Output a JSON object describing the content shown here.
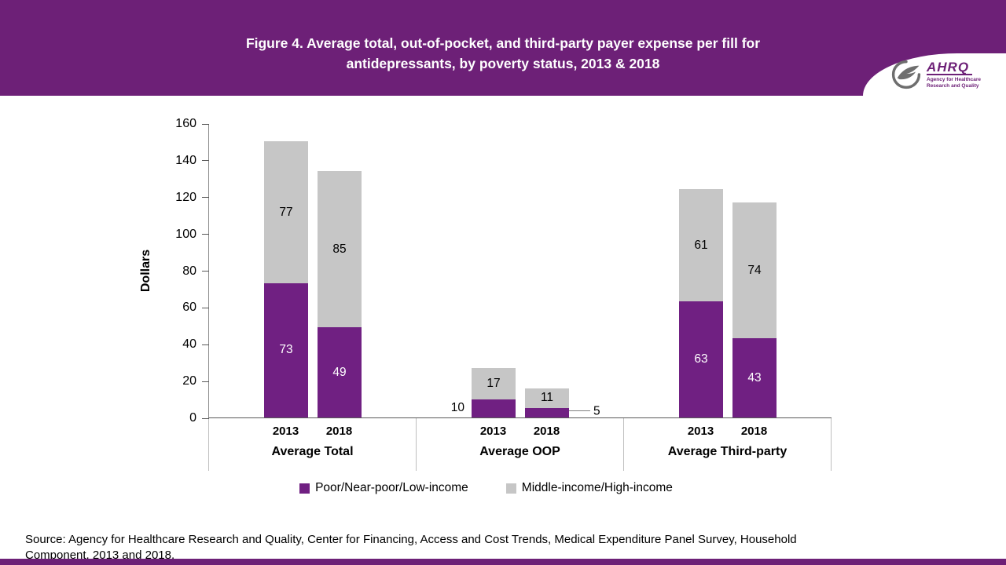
{
  "colors": {
    "header_purple": "#6d2077",
    "footer_purple": "#6d2077",
    "bar_purple": "#702082",
    "bar_gray": "#c6c6c6"
  },
  "header": {
    "title_line1": "Figure 4. Average total, out-of-pocket, and third-party payer expense per fill for",
    "title_line2": "antidepressants, by poverty status, 2013 & 2018"
  },
  "logo": {
    "wordmark": "AHRQ",
    "tagline_line1": "Agency for Healthcare",
    "tagline_line2": "Research and Quality",
    "hhs_icon": "hhs-eagle-icon"
  },
  "chart_data": {
    "type": "bar",
    "stacked": true,
    "title": "Figure 4. Average total, out-of-pocket, and third-party payer expense per fill for antidepressants, by poverty status, 2013 & 2018",
    "ylabel": "Dollars",
    "ylim": [
      0,
      160
    ],
    "yticks": [
      0,
      20,
      40,
      60,
      80,
      100,
      120,
      140,
      160
    ],
    "grid": false,
    "legend_position": "bottom",
    "group_labels": [
      "Average Total",
      "Average OOP",
      "Average Third-party"
    ],
    "bar_categories": [
      "2013",
      "2018"
    ],
    "series": [
      {
        "name": "Poor/Near-poor/Low-income",
        "color": "#702082",
        "label_text_color": "#ffffff",
        "values": [
          [
            73,
            49
          ],
          [
            10,
            5
          ],
          [
            63,
            43
          ]
        ],
        "label_positions": [
          [
            "inside",
            "inside"
          ],
          [
            "left",
            "right"
          ],
          [
            "inside",
            "inside"
          ]
        ]
      },
      {
        "name": "Middle-income/High-income",
        "color": "#c6c6c6",
        "label_text_color": "#000000",
        "values": [
          [
            77,
            85
          ],
          [
            17,
            11
          ],
          [
            61,
            74
          ]
        ],
        "label_positions": [
          [
            "inside",
            "inside"
          ],
          [
            "inside",
            "inside"
          ],
          [
            "inside",
            "inside"
          ]
        ]
      }
    ]
  },
  "source": "Source: Agency for Healthcare Research and Quality, Center for Financing, Access and Cost Trends, Medical Expenditure Panel Survey, Household Component, 2013 and 2018."
}
